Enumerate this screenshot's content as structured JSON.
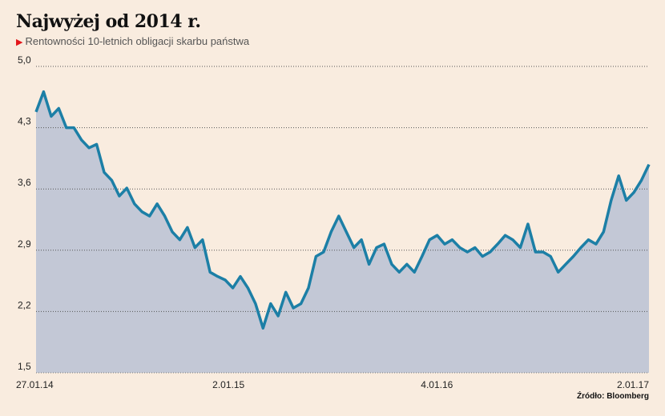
{
  "chart_data": {
    "type": "area",
    "title": "Najwyżej od 2014 r.",
    "subtitle": "Rentowności 10-letnich obligacji skarbu państwa",
    "source": "Źródło: Bloomberg",
    "ylim": [
      1.5,
      5.0
    ],
    "yticks": [
      "5,0",
      "4,3",
      "3,6",
      "2,9",
      "2,2",
      "1,5"
    ],
    "ytick_values": [
      5.0,
      4.3,
      3.6,
      2.9,
      2.2,
      1.5
    ],
    "xticks": [
      "27.01.14",
      "2.01.15",
      "4.01.16",
      "2.01.17"
    ],
    "xtick_positions": [
      0,
      0.314,
      0.654,
      1
    ],
    "colors": {
      "line": "#1c7fa6",
      "fill": "#c3c8d6"
    },
    "values": [
      4.48,
      4.71,
      4.43,
      4.52,
      4.3,
      4.3,
      4.16,
      4.07,
      4.11,
      3.79,
      3.7,
      3.52,
      3.61,
      3.43,
      3.34,
      3.29,
      3.43,
      3.29,
      3.11,
      3.02,
      3.16,
      2.93,
      3.02,
      2.65,
      2.6,
      2.56,
      2.47,
      2.6,
      2.47,
      2.29,
      2.01,
      2.29,
      2.15,
      2.42,
      2.24,
      2.29,
      2.47,
      2.83,
      2.88,
      3.11,
      3.29,
      3.11,
      2.93,
      3.02,
      2.74,
      2.93,
      2.97,
      2.74,
      2.65,
      2.74,
      2.65,
      2.83,
      3.02,
      3.07,
      2.97,
      3.02,
      2.93,
      2.88,
      2.93,
      2.83,
      2.88,
      2.97,
      3.07,
      3.02,
      2.93,
      3.2,
      2.88,
      2.88,
      2.83,
      2.65,
      2.74,
      2.83,
      2.93,
      3.02,
      2.97,
      3.11,
      3.47,
      3.75,
      3.47,
      3.56,
      3.7,
      3.88
    ]
  }
}
